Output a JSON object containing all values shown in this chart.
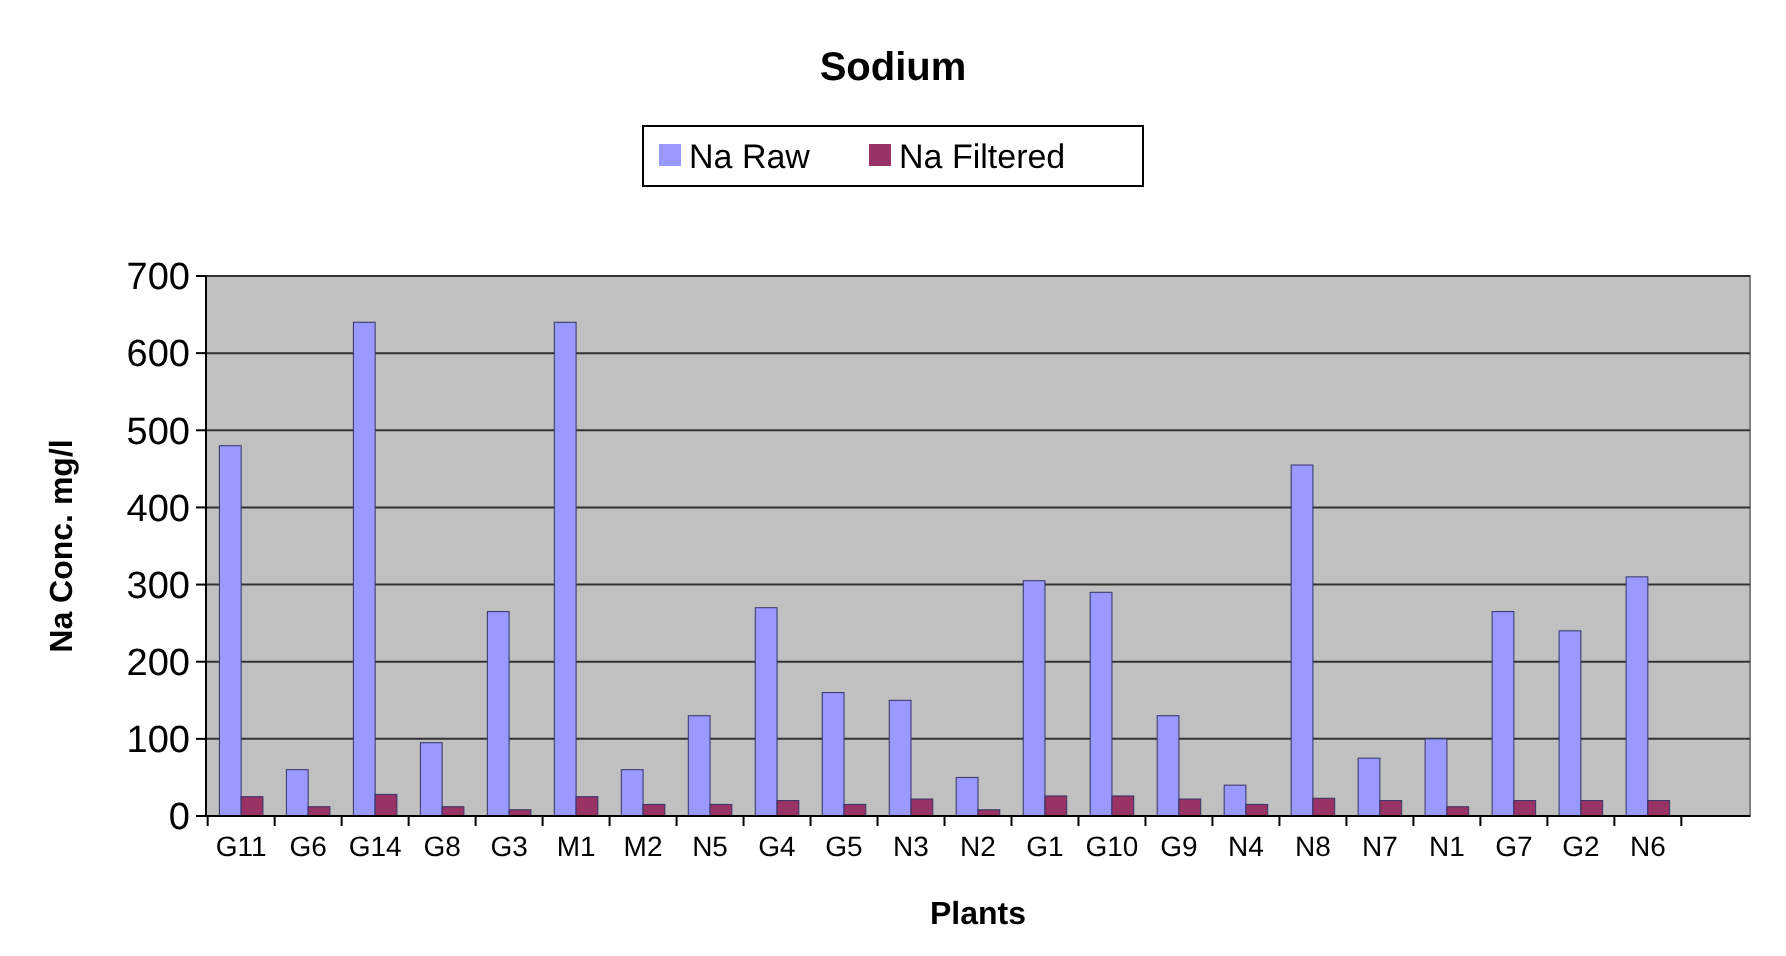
{
  "chart_data": {
    "type": "bar",
    "title": "Sodium",
    "xlabel": "Plants",
    "ylabel": "Na Conc. mg/l",
    "categories": [
      "G11",
      "G6",
      "G14",
      "G8",
      "G3",
      "M1",
      "M2",
      "N5",
      "G4",
      "G5",
      "N3",
      "N2",
      "G1",
      "G10",
      "G9",
      "N4",
      "N8",
      "N7",
      "N1",
      "G7",
      "G2",
      "N6",
      null
    ],
    "series": [
      {
        "name": "Na Raw",
        "color": "#9999ff",
        "values": [
          480,
          60,
          640,
          95,
          265,
          640,
          60,
          130,
          270,
          160,
          150,
          50,
          305,
          290,
          130,
          40,
          455,
          75,
          100,
          265,
          240,
          310,
          null
        ]
      },
      {
        "name": "Na Filtered",
        "color": "#993366",
        "values": [
          25,
          12,
          28,
          12,
          8,
          25,
          15,
          15,
          20,
          15,
          22,
          8,
          26,
          26,
          22,
          15,
          23,
          20,
          12,
          20,
          20,
          20,
          null
        ]
      }
    ],
    "ylim": [
      0,
      700
    ],
    "yticks": [
      0,
      100,
      200,
      300,
      400,
      500,
      600,
      700
    ],
    "grid": "y",
    "legend": "top"
  }
}
